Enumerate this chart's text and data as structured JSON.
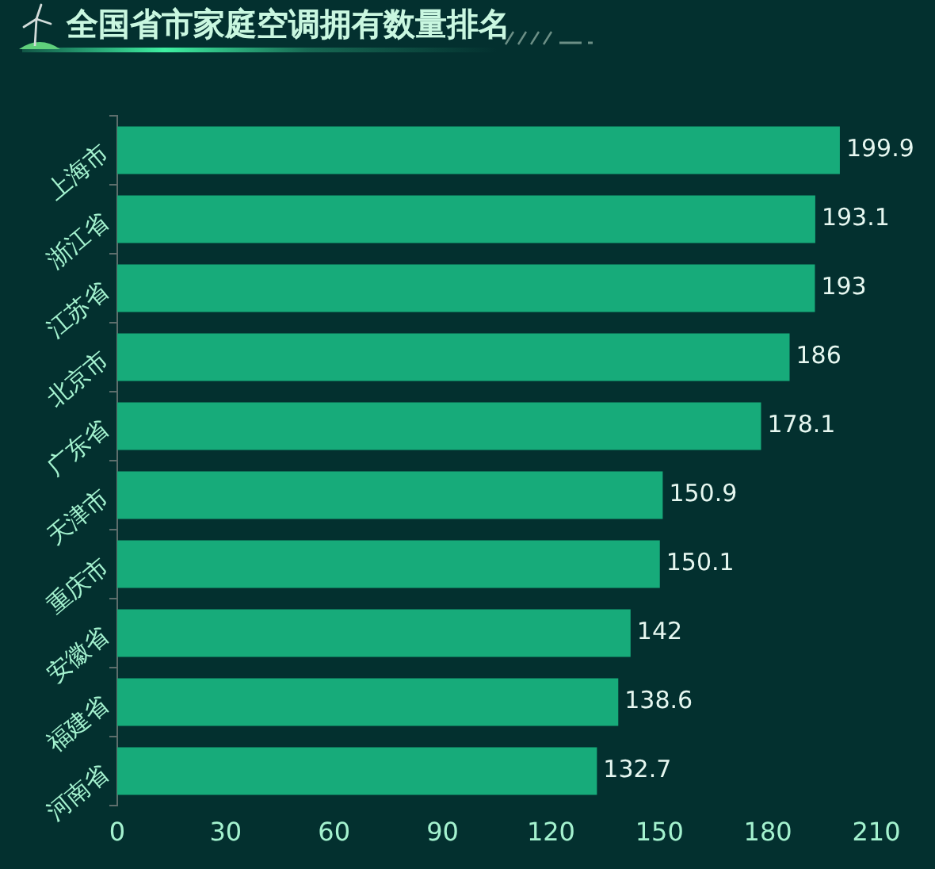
{
  "chart_data": {
    "type": "bar",
    "orientation": "horizontal",
    "title": "全国省市家庭空调拥有数量排名",
    "categories": [
      "上海市",
      "浙江省",
      "江苏省",
      "北京市",
      "广东省",
      "天津市",
      "重庆市",
      "安徽省",
      "福建省",
      "河南省"
    ],
    "values": [
      199.9,
      193.1,
      193,
      186,
      178.1,
      150.9,
      150.1,
      142,
      138.6,
      132.7
    ],
    "color": "#17ab7a",
    "xlim": [
      0,
      210
    ],
    "xticks": [
      0,
      30,
      60,
      90,
      120,
      150,
      180,
      210
    ],
    "data_labels": true,
    "grid": false,
    "legend": false
  }
}
